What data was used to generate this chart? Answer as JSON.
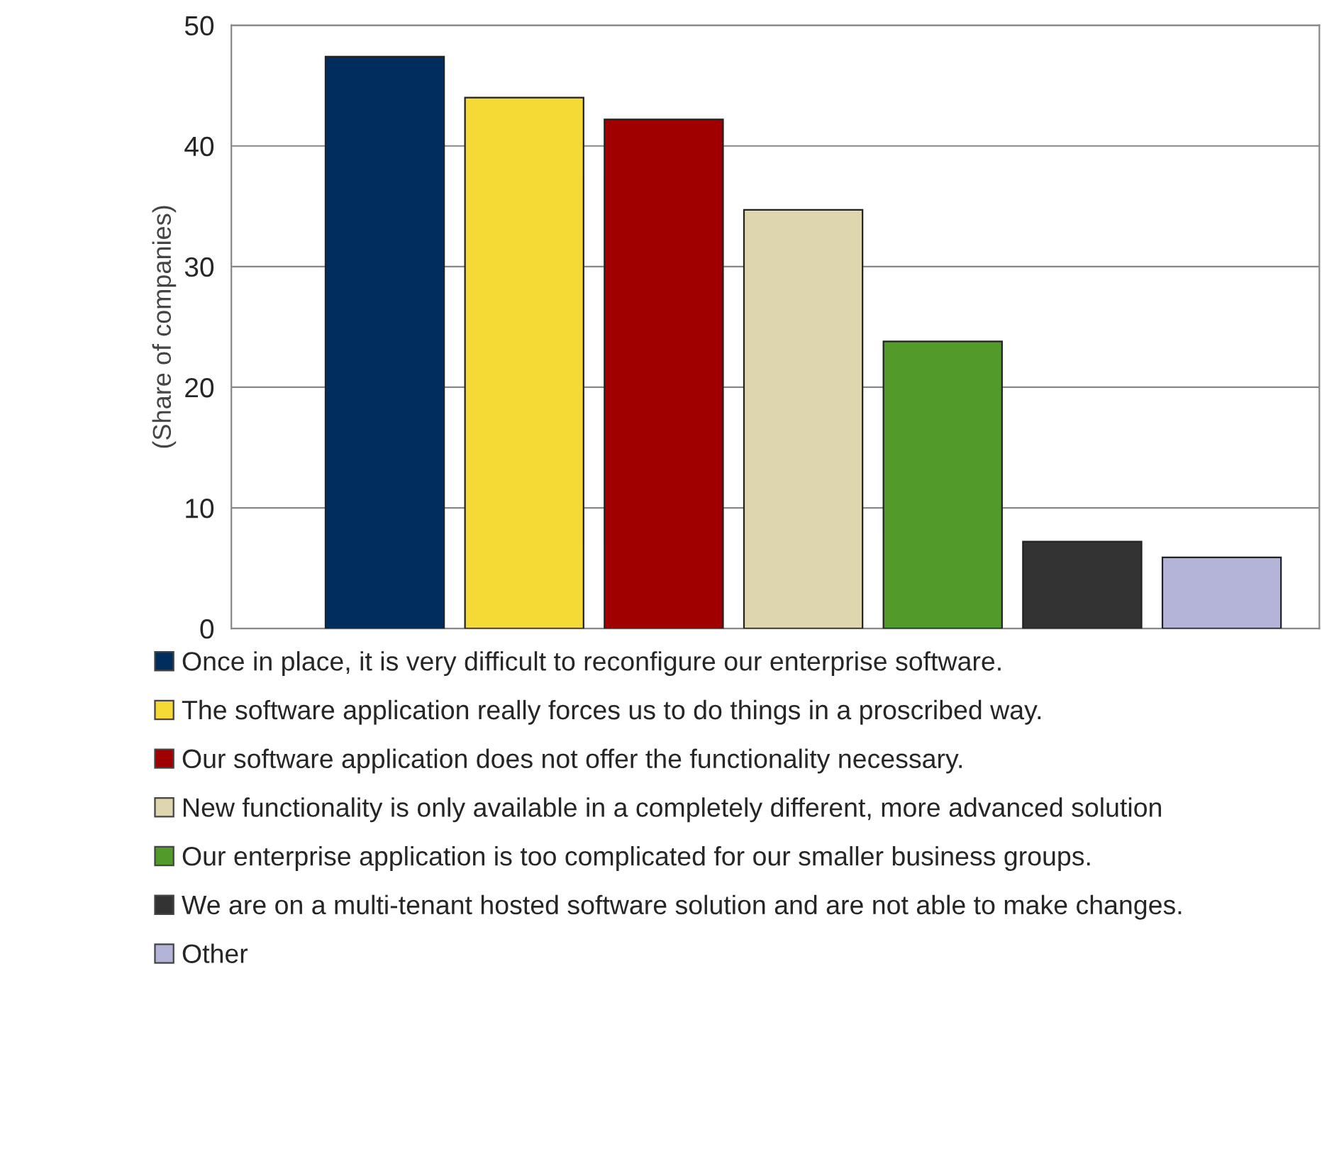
{
  "chart_data": {
    "type": "bar",
    "ylabel": "(Share of companies)",
    "categories": [
      null,
      null,
      null,
      null,
      null,
      null,
      null
    ],
    "series": [
      {
        "name": "Once in place, it is very difficult to reconfigure our enterprise software.",
        "color": "#002d5e",
        "values": [
          47.4,
          null,
          null,
          null,
          null,
          null,
          null
        ]
      },
      {
        "name": "The software application really forces us to do things in a proscribed way.",
        "color": "#f5d935",
        "values": [
          null,
          44.0,
          null,
          null,
          null,
          null,
          null
        ]
      },
      {
        "name": "Our software application does not offer the functionality necessary.",
        "color": "#a00000",
        "values": [
          null,
          null,
          42.2,
          null,
          null,
          null,
          null
        ]
      },
      {
        "name": "New functionality is only available in a completely different, more advanced solution",
        "color": "#ddd6ae",
        "values": [
          null,
          null,
          null,
          34.7,
          null,
          null,
          null
        ]
      },
      {
        "name": "Our enterprise application is too complicated for our smaller business groups.",
        "color": "#529a29",
        "values": [
          null,
          null,
          null,
          null,
          23.8,
          null,
          null
        ]
      },
      {
        "name": "We are on a multi-tenant hosted software solution and are not able to make changes.",
        "color": "#333333",
        "values": [
          null,
          null,
          null,
          null,
          null,
          7.2,
          null
        ]
      },
      {
        "name": "Other",
        "color": "#b4b4d8",
        "values": [
          null,
          null,
          null,
          null,
          null,
          null,
          5.9
        ]
      }
    ],
    "ylim": [
      0,
      50
    ],
    "yticks": [
      0,
      10,
      20,
      30,
      40,
      50
    ],
    "grid": "y",
    "legend": "bottom"
  }
}
